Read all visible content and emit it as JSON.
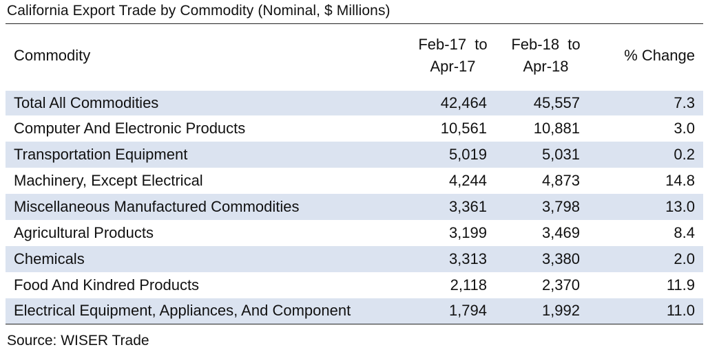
{
  "title": "California Export Trade by Commodity (Nominal, $ Millions)",
  "source": "Source: WISER Trade",
  "chart_data": {
    "type": "table",
    "title": "California Export Trade by Commodity (Nominal, $ Millions)",
    "columns": [
      {
        "line1": "Commodity",
        "line2": ""
      },
      {
        "line1": "Feb-17  to",
        "line2": "Apr-17"
      },
      {
        "line1": "Feb-18  to",
        "line2": "Apr-18"
      },
      {
        "line1": "% Change",
        "line2": ""
      }
    ],
    "rows": [
      {
        "commodity": "Total All Commodities",
        "period1": "42,464",
        "period2": "45,557",
        "pct_change": "7.3"
      },
      {
        "commodity": "Computer And Electronic Products",
        "period1": "10,561",
        "period2": "10,881",
        "pct_change": "3.0"
      },
      {
        "commodity": "Transportation Equipment",
        "period1": "5,019",
        "period2": "5,031",
        "pct_change": "0.2"
      },
      {
        "commodity": "Machinery, Except Electrical",
        "period1": "4,244",
        "period2": "4,873",
        "pct_change": "14.8"
      },
      {
        "commodity": "Miscellaneous Manufactured Commodities",
        "period1": "3,361",
        "period2": "3,798",
        "pct_change": "13.0"
      },
      {
        "commodity": "Agricultural Products",
        "period1": "3,199",
        "period2": "3,469",
        "pct_change": "8.4"
      },
      {
        "commodity": "Chemicals",
        "period1": "3,313",
        "period2": "3,380",
        "pct_change": "2.0"
      },
      {
        "commodity": "Food And Kindred Products",
        "period1": "2,118",
        "period2": "2,370",
        "pct_change": "11.9"
      },
      {
        "commodity": "Electrical Equipment, Appliances, And Component",
        "period1": "1,794",
        "period2": "1,992",
        "pct_change": "11.0"
      }
    ],
    "row_shading_color": "#dbe3f0"
  }
}
